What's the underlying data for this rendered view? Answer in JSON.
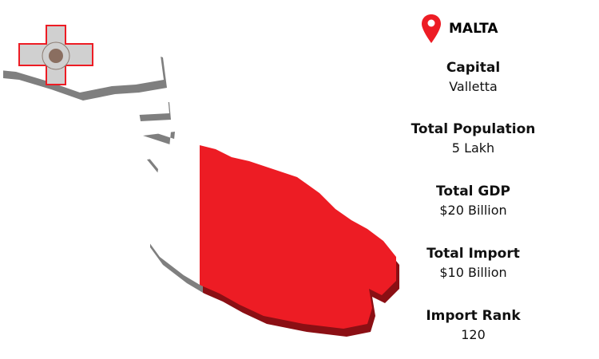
{
  "country": "MALTA",
  "icon": "map-pin-icon",
  "colors": {
    "accent": "#ed1c24",
    "white": "#ffffff",
    "shadow_gray": "#7f7f7f",
    "shadow_red": "#8b0f14"
  },
  "facts": [
    {
      "label": "Capital",
      "value": "Valletta"
    },
    {
      "label": "Total Population",
      "value": "5 Lakh"
    },
    {
      "label": "Total GDP",
      "value": "$20 Billion"
    },
    {
      "label": "Total Import",
      "value": "$10 Billion"
    },
    {
      "label": "Import Rank",
      "value": "120"
    }
  ],
  "emblem_text": "FOR GALLANTRY"
}
